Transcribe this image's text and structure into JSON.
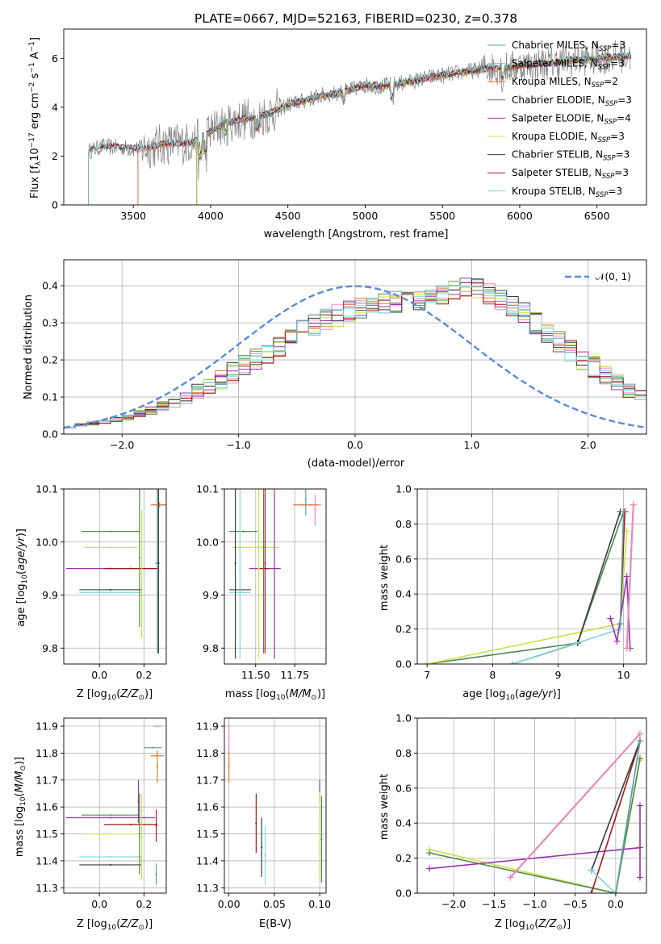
{
  "colors": {
    "data": "#7f7f7f",
    "normal": "#5b8bd6",
    "models": [
      "#5f9ea0",
      "#e78ac3",
      "#e07b39",
      "#4f8a4f",
      "#9b30b0",
      "#c8e04a",
      "#3a3a3a",
      "#a01818",
      "#7fd8e0"
    ]
  },
  "chart_data": [
    {
      "type": "line",
      "title": "PLATE=0667, MJD=52163, FIBERID=0230, z=0.378",
      "xlabel": "wavelength [Angstrom, rest frame]",
      "ylabel": "Flux [f_λ 10^-17 erg cm^-2 s^-1 A^-1]",
      "xlim": [
        3050,
        6820
      ],
      "ylim": [
        0,
        7.2
      ],
      "xticks": [
        3500,
        4000,
        4500,
        5000,
        5500,
        6000,
        6500
      ],
      "yticks": [
        0,
        2,
        4,
        6
      ],
      "legend_position": "upper right",
      "series": [
        {
          "name": "Chabrier MILES, N_SSP=3"
        },
        {
          "name": "Salpeter MILES, N_SSP=3"
        },
        {
          "name": "Kroupa MILES, N_SSP=2"
        },
        {
          "name": "Chabrier ELODIE, N_SSP=3"
        },
        {
          "name": "Salpeter ELODIE, N_SSP=4"
        },
        {
          "name": "Kroupa ELODIE, N_SSP=3"
        },
        {
          "name": "Chabrier STELIB, N_SSP=3"
        },
        {
          "name": "Salpeter STELIB, N_SSP=3"
        },
        {
          "name": "Kroupa STELIB, N_SSP=3"
        }
      ],
      "continuum": {
        "x": [
          3210,
          3300,
          3400,
          3500,
          3600,
          3700,
          3800,
          3900,
          4000,
          4100,
          4200,
          4300,
          4400,
          4500,
          4600,
          4700,
          4800,
          4900,
          5000,
          5100,
          5200,
          5300,
          5400,
          5500,
          5600,
          5700,
          5800,
          5900,
          6000,
          6100,
          6200,
          6300,
          6400,
          6500,
          6600,
          6700
        ],
        "y": [
          2.2,
          2.4,
          2.35,
          2.3,
          2.35,
          2.5,
          2.5,
          2.6,
          3.0,
          3.35,
          3.5,
          3.6,
          3.8,
          4.1,
          4.25,
          4.45,
          4.55,
          4.7,
          4.9,
          4.85,
          4.95,
          5.05,
          5.2,
          5.3,
          5.4,
          5.5,
          5.6,
          5.6,
          5.7,
          5.75,
          5.8,
          5.9,
          5.95,
          6.0,
          6.05,
          6.1
        ]
      }
    },
    {
      "type": "bar",
      "xlabel": "(data-model)/error",
      "ylabel": "Normed distribution",
      "xlim": [
        -2.5,
        2.5
      ],
      "ylim": [
        0,
        0.47
      ],
      "xticks": [
        -2,
        -1,
        0,
        1,
        2
      ],
      "yticks": [
        0.0,
        0.1,
        0.2,
        0.3,
        0.4
      ],
      "legend": "𝒩(0, 1)",
      "bin_width": 0.1,
      "bin_start": -2.5,
      "histogram_base": [
        0.02,
        0.025,
        0.03,
        0.035,
        0.04,
        0.045,
        0.055,
        0.065,
        0.075,
        0.085,
        0.1,
        0.115,
        0.13,
        0.145,
        0.165,
        0.185,
        0.205,
        0.22,
        0.24,
        0.26,
        0.28,
        0.295,
        0.31,
        0.32,
        0.33,
        0.34,
        0.345,
        0.35,
        0.355,
        0.36,
        0.36,
        0.37,
        0.38,
        0.39,
        0.395,
        0.39,
        0.38,
        0.365,
        0.345,
        0.325,
        0.3,
        0.275,
        0.25,
        0.225,
        0.2,
        0.18,
        0.16,
        0.14,
        0.12,
        0.1,
        0.085,
        0.075,
        0.065,
        0.055,
        0.045,
        0.04,
        0.035,
        0.03,
        0.025,
        0.02
      ],
      "normal_curve": {
        "mean": 0,
        "sigma": 1
      }
    },
    {
      "type": "scatter",
      "xlabel": "Z [log10(Z/Z⊙)]",
      "ylabel": "age  [log10(age/yr)]",
      "xlim": [
        -0.16,
        0.3
      ],
      "ylim": [
        9.77,
        10.1
      ],
      "xticks": [
        0.0,
        0.2
      ],
      "yticks": [
        9.8,
        9.9,
        10.0,
        10.1
      ],
      "points": [
        {
          "series": 0,
          "x": 0.26,
          "y": 9.96,
          "xerr": 0.01,
          "yerr": 0.17
        },
        {
          "series": 1,
          "x": 0.27,
          "y": 10.07,
          "xerr": 0.03,
          "yerr": 0.005
        },
        {
          "series": 2,
          "x": 0.27,
          "y": 10.07,
          "xerr": 0.04,
          "yerr": 0.005
        },
        {
          "series": 3,
          "x": 0.05,
          "y": 10.02,
          "xerr": 0.13,
          "yerr": 0.0
        },
        {
          "series": 4,
          "x": 0.05,
          "y": 9.95,
          "xerr": 0.2,
          "yerr": 0.0
        },
        {
          "series": 5,
          "x": 0.05,
          "y": 9.99,
          "xerr": 0.12,
          "yerr": 0.0
        },
        {
          "series": 6,
          "x": 0.05,
          "y": 9.91,
          "xerr": 0.14,
          "yerr": 0.0
        },
        {
          "series": 7,
          "x": 0.14,
          "y": 9.95,
          "xerr": 0.12,
          "yerr": 0.0
        },
        {
          "series": 8,
          "x": 0.05,
          "y": 9.905,
          "xerr": 0.14,
          "yerr": 0.0
        },
        {
          "series": 3,
          "x": 0.18,
          "y": 9.97,
          "xerr": 0.0,
          "yerr": 0.13
        },
        {
          "series": 5,
          "x": 0.19,
          "y": 9.94,
          "xerr": 0.0,
          "yerr": 0.12
        },
        {
          "series": 6,
          "x": 0.265,
          "y": 9.96,
          "xerr": 0.0,
          "yerr": 0.17
        }
      ]
    },
    {
      "type": "scatter",
      "xlabel": "mass [log10(M/M⊙)]",
      "ylabel": "",
      "xlim": [
        11.3,
        11.95
      ],
      "ylim": [
        9.77,
        10.1
      ],
      "xticks": [
        11.5,
        11.75
      ],
      "yticks": [
        9.8,
        9.9,
        10.0,
        10.1
      ],
      "points": [
        {
          "series": 3,
          "x": 11.42,
          "y": 10.02,
          "xerr": 0.09,
          "yerr": 0.0
        },
        {
          "series": 5,
          "x": 11.5,
          "y": 9.99,
          "xerr": 0.15,
          "yerr": 0.0
        },
        {
          "series": 4,
          "x": 11.56,
          "y": 9.95,
          "xerr": 0.1,
          "yerr": 0.0
        },
        {
          "series": 6,
          "x": 11.4,
          "y": 9.91,
          "xerr": 0.07,
          "yerr": 0.0
        },
        {
          "series": 8,
          "x": 11.4,
          "y": 9.905,
          "xerr": 0.07,
          "yerr": 0.0
        },
        {
          "series": 7,
          "x": 11.55,
          "y": 9.95,
          "xerr": 0.03,
          "yerr": 0.0
        },
        {
          "series": 1,
          "x": 11.85,
          "y": 10.07,
          "xerr": 0.07,
          "yerr": 0.0
        },
        {
          "series": 2,
          "x": 11.82,
          "y": 10.07,
          "xerr": 0.08,
          "yerr": 0.0
        },
        {
          "series": 0,
          "x": 11.82,
          "y": 10.08,
          "xerr": 0.0,
          "yerr": 0.03
        },
        {
          "series": 6,
          "x": 11.37,
          "y": 9.96,
          "xerr": 0.0,
          "yerr": 0.18
        },
        {
          "series": 8,
          "x": 11.4,
          "y": 9.95,
          "xerr": 0.0,
          "yerr": 0.17
        },
        {
          "series": 7,
          "x": 11.56,
          "y": 9.96,
          "xerr": 0.0,
          "yerr": 0.17
        },
        {
          "series": 5,
          "x": 11.52,
          "y": 9.95,
          "xerr": 0.0,
          "yerr": 0.17
        },
        {
          "series": 3,
          "x": 11.55,
          "y": 9.95,
          "xerr": 0.0,
          "yerr": 0.16
        },
        {
          "series": 4,
          "x": 11.62,
          "y": 9.95,
          "xerr": 0.0,
          "yerr": 0.17
        },
        {
          "series": 1,
          "x": 11.88,
          "y": 10.06,
          "xerr": 0.0,
          "yerr": 0.03
        }
      ]
    },
    {
      "type": "line",
      "xlabel": "age  [log10(age/yr)]",
      "ylabel": "mass weight",
      "xlim": [
        6.85,
        10.35
      ],
      "ylim": [
        0,
        1.0
      ],
      "xticks": [
        7,
        8,
        9,
        10
      ],
      "yticks": [
        0.0,
        0.2,
        0.4,
        0.6,
        0.8,
        1.0
      ],
      "series": [
        {
          "series": 3,
          "x": [
            7.0,
            9.3,
            10.0
          ],
          "y": [
            0.0,
            0.12,
            0.87
          ]
        },
        {
          "series": 5,
          "x": [
            7.0,
            9.95,
            10.05
          ],
          "y": [
            0.0,
            0.23,
            0.76
          ]
        },
        {
          "series": 6,
          "x": [
            8.3,
            9.3,
            9.95
          ],
          "y": [
            0.0,
            0.12,
            0.87
          ]
        },
        {
          "series": 8,
          "x": [
            8.3,
            9.95,
            10.0
          ],
          "y": [
            0.0,
            0.2,
            0.87
          ]
        },
        {
          "series": 4,
          "x": [
            9.8,
            9.9,
            10.05,
            10.1
          ],
          "y": [
            0.26,
            0.13,
            0.5,
            0.09
          ]
        },
        {
          "series": 2,
          "x": [
            10.05,
            10.15
          ],
          "y": [
            0.09,
            0.91
          ]
        },
        {
          "series": 1,
          "x": [
            10.05,
            10.15
          ],
          "y": [
            0.09,
            0.91
          ]
        },
        {
          "series": 7,
          "x": [
            9.95,
            10.02
          ],
          "y": [
            0.23,
            0.87
          ]
        },
        {
          "series": 0,
          "x": [
            9.95,
            10.0
          ],
          "y": [
            0.23,
            0.87
          ]
        }
      ]
    },
    {
      "type": "scatter",
      "xlabel": "Z [log10(Z/Z⊙)]",
      "ylabel": "mass [log10(M/M⊙)]",
      "xlim": [
        -0.16,
        0.3
      ],
      "ylim": [
        11.28,
        11.93
      ],
      "xticks": [
        0.0,
        0.2
      ],
      "yticks": [
        11.3,
        11.4,
        11.5,
        11.6,
        11.7,
        11.8,
        11.9
      ],
      "points": [
        {
          "series": 3,
          "x": 0.05,
          "y": 11.57,
          "xerr": 0.13,
          "yerr": 0.0
        },
        {
          "series": 4,
          "x": 0.05,
          "y": 11.56,
          "xerr": 0.2,
          "yerr": 0.0
        },
        {
          "series": 5,
          "x": 0.05,
          "y": 11.5,
          "xerr": 0.12,
          "yerr": 0.0
        },
        {
          "series": 7,
          "x": 0.14,
          "y": 11.535,
          "xerr": 0.12,
          "yerr": 0.0
        },
        {
          "series": 8,
          "x": 0.05,
          "y": 11.415,
          "xerr": 0.14,
          "yerr": 0.0
        },
        {
          "series": 6,
          "x": 0.05,
          "y": 11.385,
          "xerr": 0.14,
          "yerr": 0.0
        },
        {
          "series": 1,
          "x": 0.26,
          "y": 11.9,
          "xerr": 0.02,
          "yerr": 0.0
        },
        {
          "series": 0,
          "x": 0.24,
          "y": 11.82,
          "xerr": 0.04,
          "yerr": 0.0
        },
        {
          "series": 2,
          "x": 0.26,
          "y": 11.79,
          "xerr": 0.03,
          "yerr": 0.0
        },
        {
          "series": 2,
          "x": 0.26,
          "y": 11.75,
          "xerr": 0.0,
          "yerr": 0.06
        },
        {
          "series": 4,
          "x": 0.175,
          "y": 11.62,
          "xerr": 0.0,
          "yerr": 0.08
        },
        {
          "series": 3,
          "x": 0.18,
          "y": 11.5,
          "xerr": 0.0,
          "yerr": 0.15
        },
        {
          "series": 5,
          "x": 0.19,
          "y": 11.49,
          "xerr": 0.0,
          "yerr": 0.16
        },
        {
          "series": 7,
          "x": 0.255,
          "y": 11.53,
          "xerr": 0.0,
          "yerr": 0.06
        },
        {
          "series": 0,
          "x": 0.255,
          "y": 11.35,
          "xerr": 0.0,
          "yerr": 0.04
        }
      ]
    },
    {
      "type": "scatter",
      "xlabel": "E(B-V)",
      "ylabel": "",
      "xlim": [
        -0.005,
        0.107
      ],
      "ylim": [
        11.28,
        11.93
      ],
      "xticks": [
        0.0,
        0.05,
        0.1
      ],
      "yticks": [
        11.3,
        11.4,
        11.5,
        11.6,
        11.7,
        11.8,
        11.9
      ],
      "points": [
        {
          "series": 1,
          "x": 0.0,
          "y": 11.86,
          "xerr": 0.0,
          "yerr": 0.05
        },
        {
          "series": 2,
          "x": 0.0,
          "y": 11.75,
          "xerr": 0.0,
          "yerr": 0.06
        },
        {
          "series": 7,
          "x": 0.03,
          "y": 11.54,
          "xerr": 0.0,
          "yerr": 0.11
        },
        {
          "series": 6,
          "x": 0.036,
          "y": 11.45,
          "xerr": 0.0,
          "yerr": 0.11
        },
        {
          "series": 8,
          "x": 0.04,
          "y": 11.42,
          "xerr": 0.0,
          "yerr": 0.11
        },
        {
          "series": 4,
          "x": 0.1,
          "y": 11.66,
          "xerr": 0.0,
          "yerr": 0.04
        },
        {
          "series": 5,
          "x": 0.1,
          "y": 11.5,
          "xerr": 0.0,
          "yerr": 0.16
        },
        {
          "series": 3,
          "x": 0.102,
          "y": 11.48,
          "xerr": 0.0,
          "yerr": 0.16
        }
      ]
    },
    {
      "type": "line",
      "xlabel": "Z [log10(Z/Z⊙)]",
      "ylabel": "mass weight",
      "xlim": [
        -2.45,
        0.38
      ],
      "ylim": [
        0,
        1.0
      ],
      "xticks": [
        -2.0,
        -1.5,
        -1.0,
        -0.5,
        0.0
      ],
      "yticks": [
        0.0,
        0.2,
        0.4,
        0.6,
        0.8,
        1.0
      ],
      "series": [
        {
          "series": 5,
          "x": [
            -2.3,
            0.0,
            0.3
          ],
          "y": [
            0.25,
            0.0,
            0.76
          ]
        },
        {
          "series": 3,
          "x": [
            -2.3,
            0.0,
            0.3
          ],
          "y": [
            0.23,
            0.0,
            0.77
          ]
        },
        {
          "series": 4,
          "x": [
            -2.3,
            0.3,
            0.3,
            0.3
          ],
          "y": [
            0.14,
            0.26,
            0.5,
            0.09
          ]
        },
        {
          "series": 2,
          "x": [
            -1.3,
            0.3
          ],
          "y": [
            0.09,
            0.91
          ]
        },
        {
          "series": 1,
          "x": [
            -1.3,
            0.3
          ],
          "y": [
            0.09,
            0.91
          ]
        },
        {
          "series": 7,
          "x": [
            -0.3,
            0.3
          ],
          "y": [
            0.0,
            0.87
          ]
        },
        {
          "series": 6,
          "x": [
            -0.3,
            0.3
          ],
          "y": [
            0.13,
            0.87
          ]
        },
        {
          "series": 8,
          "x": [
            -0.3,
            0.0,
            0.3
          ],
          "y": [
            0.13,
            0.0,
            0.87
          ]
        },
        {
          "series": 0,
          "x": [
            0.0,
            0.3
          ],
          "y": [
            0.0,
            0.87
          ]
        }
      ]
    }
  ]
}
